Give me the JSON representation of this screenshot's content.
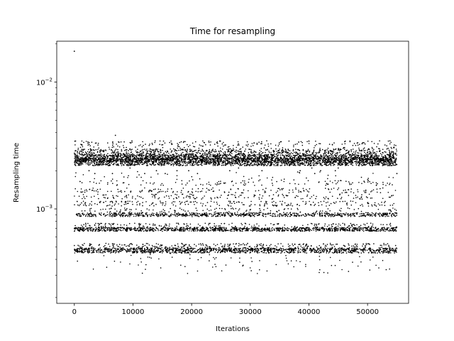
{
  "chart_data": {
    "type": "scatter",
    "title": "Time for resampling",
    "xlabel": "Iterations",
    "ylabel": "Resampling time",
    "x_range": [
      -3000,
      57000
    ],
    "y_range": [
      0.00018,
      0.021
    ],
    "y_scale": "log",
    "grid": false,
    "marker_color": "#000000",
    "x_ticks": [
      {
        "value": 0,
        "label": "0"
      },
      {
        "value": 10000,
        "label": "10000"
      },
      {
        "value": 20000,
        "label": "20000"
      },
      {
        "value": 30000,
        "label": "30000"
      },
      {
        "value": 40000,
        "label": "40000"
      },
      {
        "value": 50000,
        "label": "50000"
      }
    ],
    "y_ticks_major": [
      {
        "value": 0.001,
        "base": "10",
        "exp": "−3"
      },
      {
        "value": 0.01,
        "base": "10",
        "exp": "−2"
      }
    ],
    "y_ticks_minor": [
      0.0002,
      0.0003,
      0.0004,
      0.0005,
      0.0006,
      0.0007,
      0.0008,
      0.0009,
      0.002,
      0.003,
      0.004,
      0.005,
      0.006,
      0.007,
      0.008,
      0.009,
      0.02
    ],
    "points": [
      [
        0,
        0.0175
      ],
      [
        7000,
        0.0038
      ],
      [
        7500,
        0.0027
      ],
      [
        53500,
        0.003
      ],
      [
        49000,
        0.0029
      ],
      [
        46500,
        0.0029
      ],
      [
        36500,
        0.0029
      ],
      [
        36000,
        0.0028
      ],
      [
        5000,
        0.0025
      ],
      [
        6000,
        0.0025
      ],
      [
        5500,
        0.0024
      ],
      [
        25500,
        0.0025
      ],
      [
        29500,
        0.0025
      ],
      [
        39000,
        0.0025
      ],
      [
        46000,
        0.0024
      ],
      [
        51500,
        0.0025
      ],
      [
        52500,
        0.0024
      ],
      [
        2500,
        0.002
      ],
      [
        3500,
        0.0019
      ],
      [
        9000,
        0.0022
      ],
      [
        9500,
        0.0021
      ],
      [
        14000,
        0.002
      ],
      [
        17500,
        0.002
      ],
      [
        19500,
        0.002
      ],
      [
        22500,
        0.0023
      ],
      [
        24000,
        0.0022
      ],
      [
        26500,
        0.002
      ],
      [
        33500,
        0.0023
      ],
      [
        35000,
        0.0024
      ],
      [
        42000,
        0.002
      ],
      [
        44500,
        0.002
      ],
      [
        48500,
        0.0022
      ],
      [
        54000,
        0.0022
      ],
      [
        55000,
        0.0019
      ],
      [
        12000,
        0.0019
      ],
      [
        28000,
        0.0021
      ],
      [
        41000,
        0.0019
      ],
      [
        6500,
        0.0019
      ],
      [
        32000,
        0.002
      ],
      [
        45000,
        0.0021
      ],
      [
        40500,
        0.0021
      ],
      [
        50500,
        0.0022
      ],
      [
        15500,
        0.0019
      ],
      [
        38500,
        0.002
      ],
      [
        21000,
        0.0019
      ]
    ],
    "bands": [
      {
        "y": 0.00235,
        "density": 16,
        "spread": 0.03
      },
      {
        "y": 0.0025,
        "density": 12,
        "spread": 0.03
      },
      {
        "y": 0.0027,
        "density": 8,
        "spread": 0.04
      },
      {
        "y": 0.003,
        "density": 4,
        "spread": 0.06
      },
      {
        "y": 0.00047,
        "density": 10,
        "spread": 0.02
      },
      {
        "y": 0.0005,
        "density": 4,
        "spread": 0.03
      },
      {
        "y": 0.00069,
        "density": 9,
        "spread": 0.015
      },
      {
        "y": 0.00072,
        "density": 3,
        "spread": 0.03
      },
      {
        "y": 0.0009,
        "density": 6,
        "spread": 0.015
      },
      {
        "y": 0.00095,
        "density": 2,
        "spread": 0.03
      },
      {
        "y": 0.0011,
        "density": 2,
        "spread": 0.02
      },
      {
        "y": 0.00125,
        "density": 1.5,
        "spread": 0.02
      },
      {
        "y": 0.0014,
        "density": 1.5,
        "spread": 0.02
      },
      {
        "y": 0.0016,
        "density": 1,
        "spread": 0.02
      },
      {
        "y": 0.0018,
        "density": 0.5,
        "spread": 0.04
      },
      {
        "y": 0.00037,
        "density": 0.8,
        "spread": 0.08
      }
    ]
  }
}
